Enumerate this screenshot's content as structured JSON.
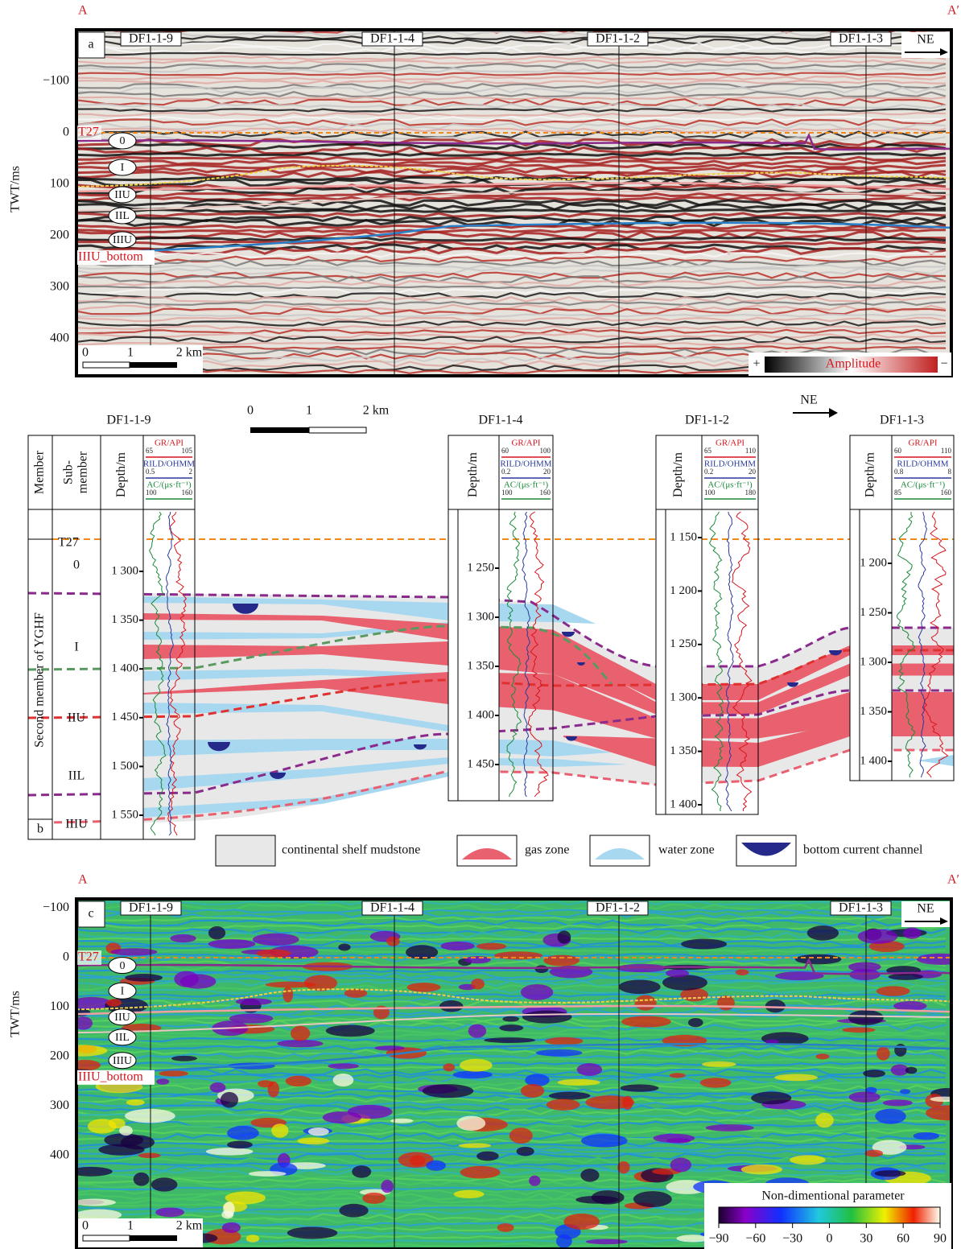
{
  "panel_a": {
    "label": "a",
    "start": "A",
    "end": "A′",
    "wells": [
      "DF1-1-9",
      "DF1-1-4",
      "DF1-1-2",
      "DF1-1-3"
    ],
    "direction": "NE",
    "y_axis_title": "TWT/ms",
    "y_ticks": [
      "−100",
      "0",
      "100",
      "200",
      "300",
      "400"
    ],
    "horizons": {
      "top": "T27",
      "bottom": "IIIU_bottom"
    },
    "units": [
      "0",
      "I",
      "IIU",
      "IIL",
      "IIIU"
    ],
    "scale_bar": [
      "0",
      "1",
      "2 km"
    ],
    "colorbar": {
      "plus": "+",
      "title": "Amplitude",
      "minus": "−"
    }
  },
  "panel_b": {
    "label": "b",
    "direction": "NE",
    "scale_bar": [
      "0",
      "1",
      "2 km"
    ],
    "member_column": "Member",
    "submember_column": [
      "Sub-",
      "member"
    ],
    "member": "Second member of YGHF",
    "submembers": [
      "T27",
      "0",
      "I",
      "IIU",
      "IIL",
      "IIIU"
    ],
    "wells": [
      {
        "name": "DF1-1-9",
        "depth_title": "Depth/m",
        "gr": {
          "title": "GR/API",
          "min": "65",
          "max": "105"
        },
        "rild": {
          "title": "RILD/OHMM",
          "min": "0.5",
          "max": "2"
        },
        "ac": {
          "title": "AC/(μs·ft⁻¹)",
          "min": "100",
          "max": "160"
        },
        "depths": [
          "1 300",
          "1 350",
          "1 400",
          "1 450",
          "1 500",
          "1 550"
        ]
      },
      {
        "name": "DF1-1-4",
        "depth_title": "Depth/m",
        "gr": {
          "title": "GR/API",
          "min": "60",
          "max": "100"
        },
        "rild": {
          "title": "RILD/OHMM",
          "min": "0.2",
          "max": "20"
        },
        "ac": {
          "title": "AC/(μs·ft⁻¹)",
          "min": "100",
          "max": "160"
        },
        "depths": [
          "1 250",
          "1 300",
          "1 350",
          "1 400",
          "1 450"
        ]
      },
      {
        "name": "DF1-1-2",
        "depth_title": "Depth/m",
        "gr": {
          "title": "GR/API",
          "min": "65",
          "max": "110"
        },
        "rild": {
          "title": "RILD/OHMM",
          "min": "0.2",
          "max": "20"
        },
        "ac": {
          "title": "AC/(μs·ft⁻¹)",
          "min": "100",
          "max": "180"
        },
        "depths": [
          "1 150",
          "1 200",
          "1 250",
          "1 300",
          "1 350",
          "1 400"
        ]
      },
      {
        "name": "DF1-1-3",
        "depth_title": "Depth/m",
        "gr": {
          "title": "GR/API",
          "min": "60",
          "max": "110"
        },
        "rild": {
          "title": "RILD/OHMM",
          "min": "0.8",
          "max": "8"
        },
        "ac": {
          "title": "AC/(μs·ft⁻¹)",
          "min": "85",
          "max": "160"
        },
        "depths": [
          "1 200",
          "1 250",
          "1 300",
          "1 350",
          "1 400"
        ]
      }
    ],
    "legend": [
      "continental shelf mudstone",
      "gas zone",
      "water zone",
      "bottom current channel"
    ]
  },
  "panel_c": {
    "label": "c",
    "start": "A",
    "end": "A′",
    "wells": [
      "DF1-1-9",
      "DF1-1-4",
      "DF1-1-2",
      "DF1-1-3"
    ],
    "direction": "NE",
    "y_axis_title": "TWT/ms",
    "y_ticks": [
      "−100",
      "0",
      "100",
      "200",
      "300",
      "400"
    ],
    "horizons": {
      "top": "T27",
      "bottom": "IIIU_bottom"
    },
    "units": [
      "0",
      "I",
      "IIU",
      "IIL",
      "IIIU"
    ],
    "scale_bar": [
      "0",
      "1",
      "2 km"
    ],
    "colorbar": {
      "title": "Non-dimentional parameter",
      "ticks": [
        "−90",
        "−60",
        "−30",
        "0",
        "30",
        "60",
        "90"
      ]
    }
  }
}
